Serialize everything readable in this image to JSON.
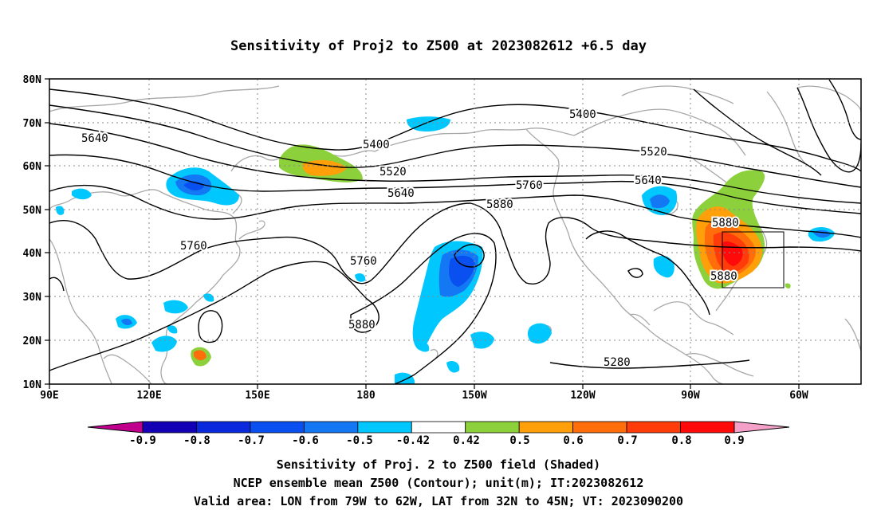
{
  "title": "Sensitivity of Proj2 to Z500 at 2023082612 +6.5 day",
  "captions": {
    "line1": "Sensitivity of Proj. 2 to Z500 field (Shaded)",
    "line2": "NCEP ensemble mean Z500 (Contour); unit(m); IT:2023082612",
    "line3": "Valid area: LON from 79W to 62W, LAT from 32N to 45N; VT: 2023090200"
  },
  "axes": {
    "lat_labels": [
      "80N",
      "70N",
      "60N",
      "50N",
      "40N",
      "30N",
      "20N",
      "10N"
    ],
    "lon_labels": [
      "90E",
      "120E",
      "150E",
      "180",
      "150W",
      "120W",
      "90W",
      "60W"
    ]
  },
  "contour_labels": [
    "5400",
    "5400",
    "5520",
    "5520",
    "5640",
    "5640",
    "5640",
    "5760",
    "5760",
    "5760",
    "5880",
    "5880",
    "5880",
    "5880",
    "5280"
  ],
  "colorbar": {
    "labels": [
      "-0.9",
      "-0.8",
      "-0.7",
      "-0.6",
      "-0.5",
      "-0.42",
      "0.42",
      "0.5",
      "0.6",
      "0.7",
      "0.8",
      "0.9"
    ],
    "colors": [
      "#c0008c",
      "#1400b4",
      "#0a28dc",
      "#0a50f0",
      "#1478f5",
      "#00c8ff",
      "#ffffff",
      "#8cd03c",
      "#ffa00a",
      "#ff6e0a",
      "#ff3c0a",
      "#ff0a0a",
      "#f5a0c8"
    ]
  },
  "valid_area": {
    "lon": [
      "79W",
      "62W"
    ],
    "lat": [
      "32N",
      "45N"
    ]
  }
}
